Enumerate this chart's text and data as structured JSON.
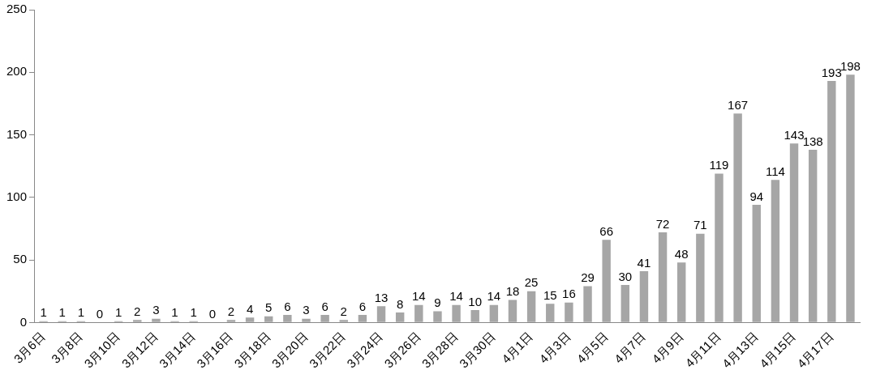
{
  "chart_data": {
    "type": "bar",
    "categories": [
      "3月6日",
      null,
      "3月8日",
      null,
      "3月10日",
      null,
      "3月12日",
      null,
      "3月14日",
      null,
      "3月16日",
      null,
      "3月18日",
      null,
      "3月20日",
      null,
      "3月22日",
      null,
      "3月24日",
      null,
      "3月26日",
      null,
      "3月28日",
      null,
      "3月30日",
      null,
      "4月1日",
      null,
      "4月3日",
      null,
      "4月5日",
      null,
      "4月7日",
      null,
      "4月9日",
      null,
      "4月11日",
      null,
      "4月13日",
      null,
      "4月15日",
      null,
      "4月17日",
      null
    ],
    "values": [
      1,
      1,
      1,
      0,
      1,
      2,
      3,
      1,
      1,
      0,
      2,
      4,
      5,
      6,
      3,
      6,
      2,
      6,
      13,
      8,
      14,
      9,
      14,
      10,
      14,
      18,
      25,
      15,
      16,
      29,
      66,
      30,
      41,
      72,
      48,
      71,
      119,
      167,
      94,
      114,
      143,
      138,
      193,
      198
    ],
    "color": "#a6a6a6",
    "ylim": [
      0,
      250
    ],
    "yticks": [
      0,
      50,
      100,
      150,
      200,
      250
    ],
    "grid": false,
    "legend": false,
    "data_labels": true
  }
}
